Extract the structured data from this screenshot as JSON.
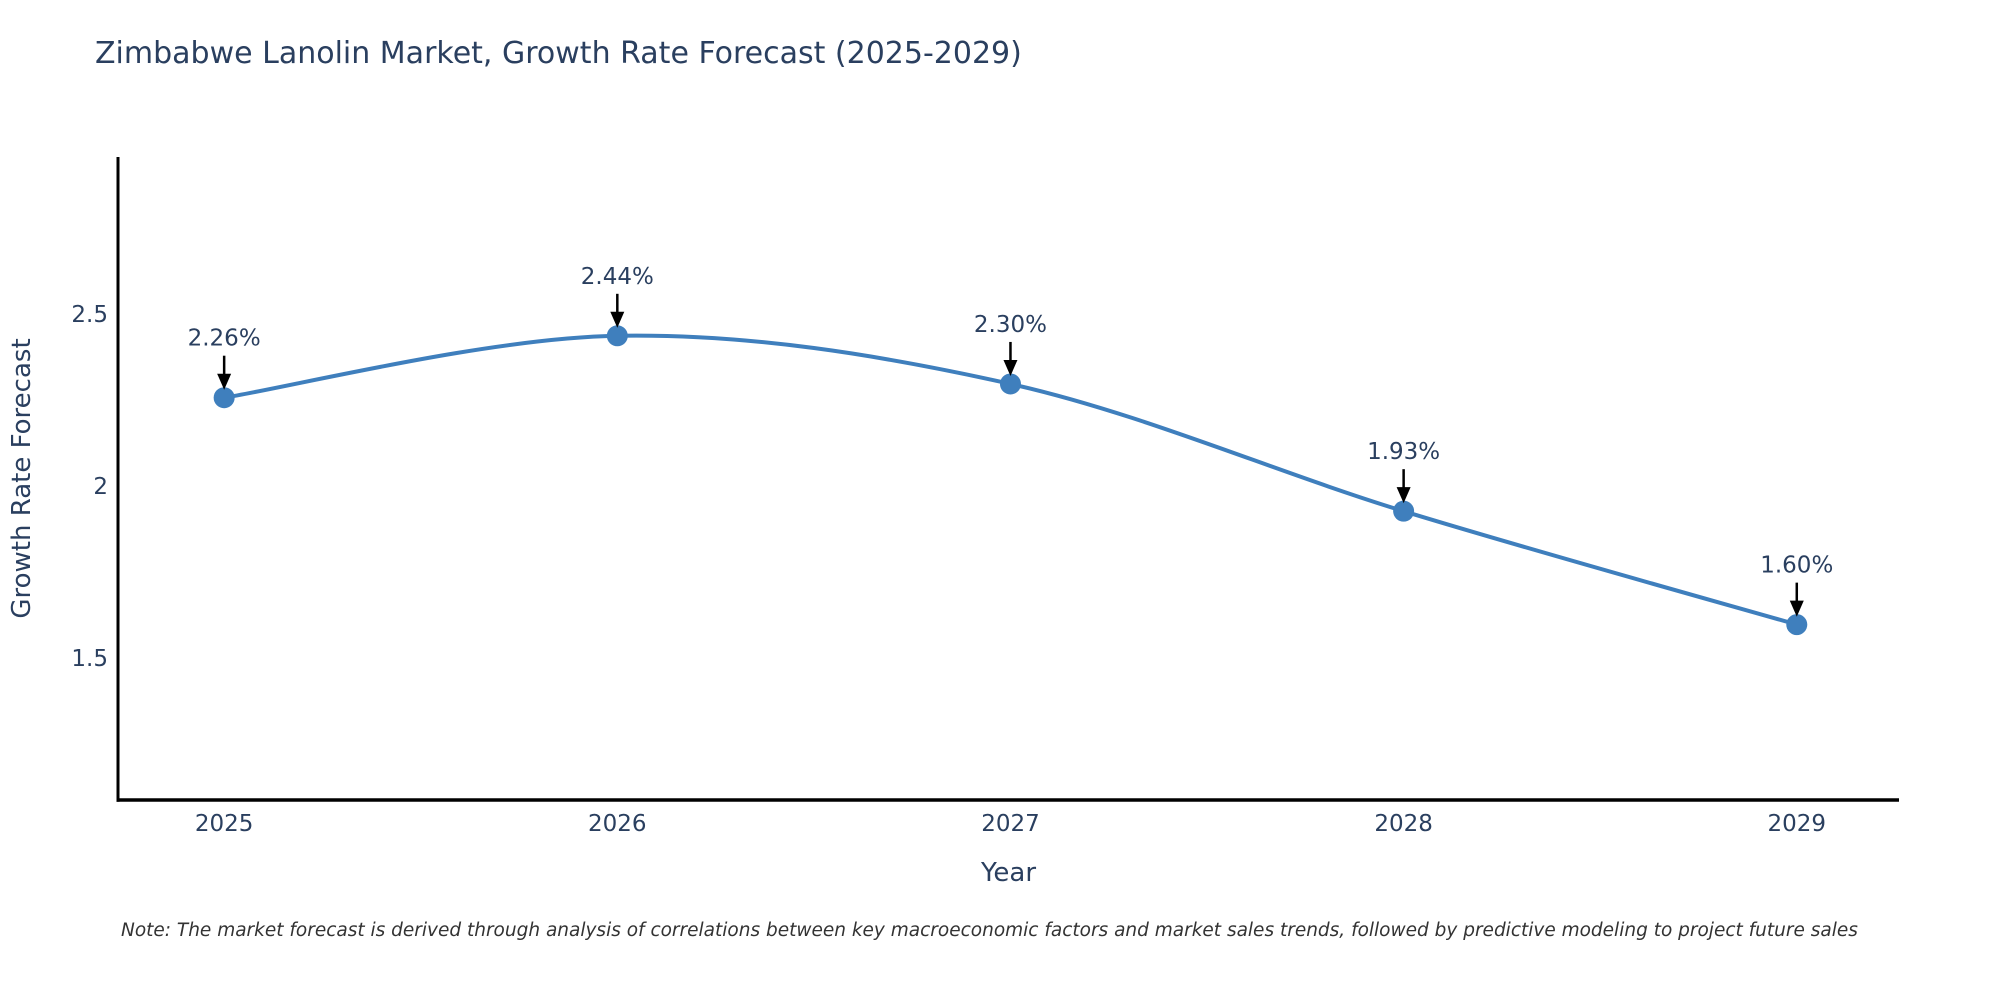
{
  "title": "Zimbabwe Lanolin Market, Growth Rate Forecast (2025-2029)",
  "note": "Note: The market forecast is derived through analysis of correlations between key macroeconomic factors and market sales trends, followed by predictive modeling to project future sales",
  "chart_data": {
    "type": "line",
    "title": "Zimbabwe Lanolin Market, Growth Rate Forecast (2025-2029)",
    "xlabel": "Year",
    "ylabel": "Growth Rate Forecast",
    "x": [
      2025,
      2026,
      2027,
      2028,
      2029
    ],
    "series": [
      {
        "name": "Growth Rate Forecast",
        "values": [
          2.26,
          2.44,
          2.3,
          1.93,
          1.6
        ]
      }
    ],
    "point_labels": [
      "2.26%",
      "2.44%",
      "2.30%",
      "1.93%",
      "1.60%"
    ],
    "yticks": [
      1.5,
      2,
      2.5
    ],
    "xlim": [
      2024.73,
      2029.26
    ],
    "ylim": [
      1.09,
      2.96
    ],
    "line_shape": "spline",
    "grid": false,
    "legend": "none",
    "colors": {
      "line": "#3f7fbd",
      "marker": "#3f7fbd",
      "text": "#2a3f5f",
      "axis": "#000000",
      "annotation_text": "#2a3f5f",
      "annotation_arrow": "#000000",
      "note": "#333333",
      "background": "#ffffff"
    }
  }
}
